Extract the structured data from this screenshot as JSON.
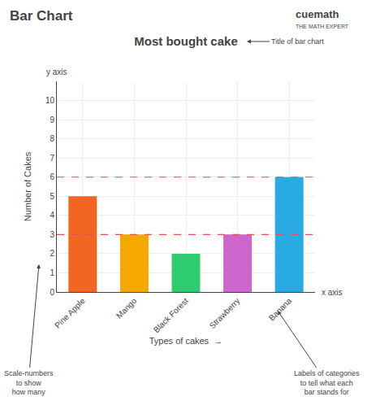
{
  "chart_data": {
    "type": "bar",
    "title": "Most bought cake",
    "categories": [
      "Pine Apple",
      "Mango",
      "Black Forest",
      "Strawberry",
      "Banana"
    ],
    "values": [
      5,
      3,
      2,
      3,
      6
    ],
    "colors": [
      "#f26522",
      "#f5a800",
      "#2ecc71",
      "#cc66cc",
      "#29abe2"
    ],
    "xlabel": "Types of cakes  →",
    "ylabel": "Number of Cakes",
    "ylim": [
      0,
      11
    ],
    "yticks": [
      0,
      1,
      2,
      3,
      4,
      5,
      6,
      7,
      8,
      9,
      10
    ],
    "grid": true,
    "hlines": [
      {
        "value": 3,
        "color": "#e05050",
        "line_style": "dashed"
      },
      {
        "value": 6,
        "color": "#e05050",
        "line_style": "dashed"
      }
    ],
    "annotations": [
      "Bar Chart",
      "cuemath",
      "THE MATH EXPERT",
      "y axis",
      "x axis",
      "Title of bar chart",
      "Scale-numbers\nto show\nhow many",
      "Labels of categories\nto tell what each\nbar stands for"
    ]
  }
}
